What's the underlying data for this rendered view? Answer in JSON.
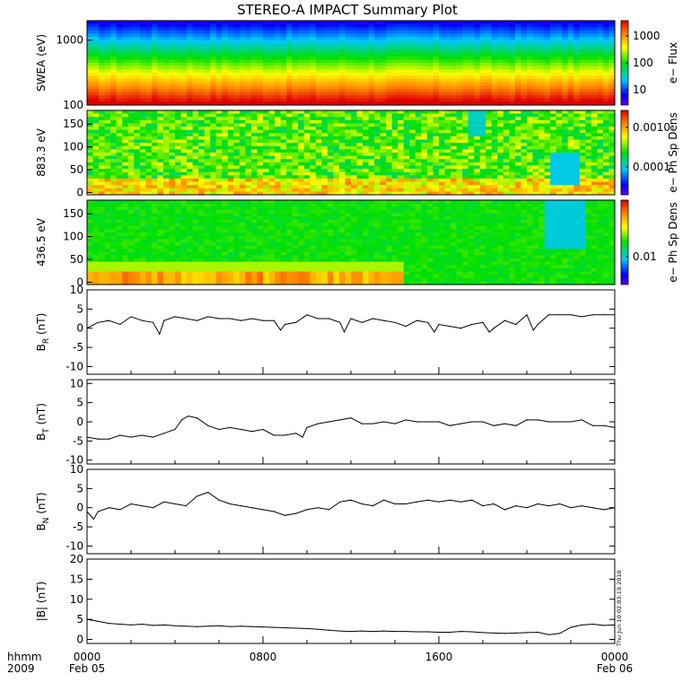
{
  "title": "STEREO-A IMPACT Summary Plot",
  "stamp": "Thu Jun 10 02:03:19 2010",
  "time_axis": {
    "corner_line1": "hhmm",
    "corner_line2": "2009",
    "ticks": [
      {
        "t": 0,
        "line1": "0000",
        "line2": "Feb 05"
      },
      {
        "t": 8,
        "line1": "0800",
        "line2": ""
      },
      {
        "t": 16,
        "line1": "1600",
        "line2": ""
      },
      {
        "t": 24,
        "line1": "0000",
        "line2": "Feb 06"
      }
    ]
  },
  "spectrograms": [
    {
      "ylabel": "SWEA (eV)",
      "scale": "log",
      "ylim": [
        100,
        2000
      ],
      "yticks": [
        {
          "v": 1000,
          "label": "1000"
        },
        {
          "v": 100,
          "label": "100"
        }
      ],
      "colorbar_label": "e− Flux",
      "colorbar_ticks": [
        {
          "f": 0.82,
          "label": "1000"
        },
        {
          "f": 0.5,
          "label": "100"
        },
        {
          "f": 0.18,
          "label": "10"
        }
      ],
      "profile": "energy"
    },
    {
      "ylabel": "883.3 eV",
      "scale": "linear",
      "ylim": [
        -5,
        180
      ],
      "yticks": [
        {
          "v": 150,
          "label": "150"
        },
        {
          "v": 100,
          "label": "100"
        },
        {
          "v": 50,
          "label": "50"
        },
        {
          "v": 0,
          "label": "0"
        }
      ],
      "colorbar_label": "e− Ph Sp Dens",
      "colorbar_ticks": [
        {
          "f": 0.8,
          "label": "0.0010"
        },
        {
          "f": 0.33,
          "label": "0.0001"
        }
      ],
      "profile": "pad_high"
    },
    {
      "ylabel": "436.5 eV",
      "scale": "linear",
      "ylim": [
        -5,
        180
      ],
      "yticks": [
        {
          "v": 150,
          "label": "150"
        },
        {
          "v": 100,
          "label": "100"
        },
        {
          "v": 50,
          "label": "50"
        },
        {
          "v": 0,
          "label": "0"
        }
      ],
      "colorbar_label": "e− Ph Sp Dens",
      "colorbar_ticks": [
        {
          "f": 0.33,
          "label": "0.01"
        }
      ],
      "profile": "pad_low"
    }
  ],
  "chart_data": [
    {
      "type": "line",
      "name": "BR",
      "ylabel_main": "B",
      "ylabel_sub": "R",
      "ylabel_unit": " (nT)",
      "ylim": [
        -12,
        10
      ],
      "yticks": [
        10,
        5,
        0,
        -5,
        -10
      ],
      "x": [
        0,
        0.5,
        1,
        1.5,
        2,
        2.5,
        3,
        3.3,
        3.5,
        4,
        4.5,
        5,
        5.5,
        6,
        6.5,
        7,
        7.5,
        8,
        8.5,
        8.8,
        9,
        9.5,
        10,
        10.5,
        11,
        11.5,
        11.7,
        12,
        12.5,
        13,
        13.5,
        14,
        14.5,
        15,
        15.5,
        15.8,
        16,
        16.5,
        17,
        17.5,
        18,
        18.3,
        18.5,
        19,
        19.5,
        20,
        20.3,
        20.5,
        21,
        21.5,
        22,
        22.5,
        23,
        23.5,
        24
      ],
      "y": [
        0,
        1.5,
        2,
        1,
        3,
        2,
        1.5,
        -1.5,
        2,
        3,
        2.5,
        2,
        3,
        2.5,
        2.5,
        2,
        2.5,
        2,
        2,
        -0.5,
        1,
        1.5,
        3.5,
        2.5,
        2.5,
        1.5,
        -1,
        2.5,
        1.5,
        2.5,
        2,
        1.5,
        0.5,
        2,
        1.5,
        -1,
        1,
        0.5,
        0,
        1,
        1.5,
        -1,
        0,
        2,
        1,
        3.5,
        -0.5,
        1,
        3.5,
        3.5,
        3.5,
        3,
        3.5,
        3.5,
        3.5
      ]
    },
    {
      "type": "line",
      "name": "BT",
      "ylabel_main": "B",
      "ylabel_sub": "T",
      "ylabel_unit": " (nT)",
      "ylim": [
        -11,
        11
      ],
      "yticks": [
        10,
        5,
        0,
        -5,
        -10
      ],
      "x": [
        0,
        0.5,
        1,
        1.5,
        2,
        2.5,
        3,
        3.5,
        4,
        4.3,
        4.6,
        5,
        5.5,
        6,
        6.5,
        7,
        7.5,
        8,
        8.5,
        9,
        9.5,
        9.8,
        10,
        10.5,
        11,
        11.5,
        12,
        12.5,
        13,
        13.5,
        14,
        14.5,
        15,
        15.5,
        16,
        16.5,
        17,
        17.5,
        18,
        18.5,
        19,
        19.5,
        20,
        20.5,
        21,
        21.5,
        22,
        22.5,
        23,
        23.5,
        24
      ],
      "y": [
        -4,
        -4.5,
        -4.5,
        -3.5,
        -4,
        -3.5,
        -4,
        -3,
        -2,
        0.5,
        1.5,
        1,
        -1,
        -2,
        -1.5,
        -2,
        -2.5,
        -2,
        -3.5,
        -3.5,
        -3,
        -4,
        -1.5,
        -0.5,
        0,
        0.5,
        1,
        -0.5,
        -0.5,
        0,
        -0.5,
        0.5,
        0,
        0,
        0,
        -1,
        -0.5,
        0,
        0,
        -1,
        -0.5,
        -1,
        0.5,
        0.5,
        0,
        0,
        0,
        0.5,
        -1,
        -1,
        -1.5
      ]
    },
    {
      "type": "line",
      "name": "BN",
      "ylabel_main": "B",
      "ylabel_sub": "N",
      "ylabel_unit": " (nT)",
      "ylim": [
        -12,
        10
      ],
      "yticks": [
        10,
        5,
        0,
        -5,
        -10
      ],
      "x": [
        0,
        0.3,
        0.5,
        1,
        1.5,
        2,
        2.5,
        3,
        3.5,
        4,
        4.5,
        5,
        5.5,
        6,
        6.5,
        7,
        7.5,
        8,
        8.5,
        9,
        9.5,
        10,
        10.5,
        11,
        11.5,
        12,
        12.5,
        13,
        13.5,
        14,
        14.5,
        15,
        15.5,
        16,
        16.5,
        17,
        17.5,
        18,
        18.5,
        19,
        19.5,
        20,
        20.5,
        21,
        21.5,
        22,
        22.5,
        23,
        23.5,
        24
      ],
      "y": [
        -1,
        -3,
        -1,
        0,
        -0.5,
        1,
        0.5,
        0,
        1.5,
        1,
        0.5,
        3,
        4,
        2,
        1,
        0.5,
        0,
        -0.5,
        -1,
        -2,
        -1.5,
        -0.5,
        0,
        -0.5,
        1.5,
        2,
        1,
        0.5,
        2,
        1,
        1,
        1.5,
        2,
        1.5,
        2,
        1.5,
        2,
        0.5,
        1,
        -0.5,
        0.5,
        0,
        1,
        0.5,
        1,
        0,
        0.5,
        0,
        -0.5,
        0
      ]
    },
    {
      "type": "line",
      "name": "|B|",
      "ylabel_main": "|B|",
      "ylabel_sub": "",
      "ylabel_unit": " (nT)",
      "ylim": [
        -1,
        20
      ],
      "yticks": [
        20,
        15,
        10,
        5,
        0
      ],
      "x": [
        0,
        0.5,
        1,
        1.5,
        2,
        2.5,
        3,
        3.5,
        4,
        4.5,
        5,
        5.5,
        6,
        6.5,
        7,
        7.5,
        8,
        8.5,
        9,
        9.5,
        10,
        10.5,
        11,
        11.5,
        12,
        12.5,
        13,
        13.5,
        14,
        14.5,
        15,
        15.5,
        16,
        16.5,
        17,
        17.5,
        18,
        18.5,
        19,
        19.5,
        20,
        20.5,
        21,
        21.5,
        22,
        22.5,
        23,
        23.5,
        24
      ],
      "y": [
        5,
        4.5,
        4,
        3.8,
        3.6,
        3.8,
        3.5,
        3.6,
        3.4,
        3.3,
        3.2,
        3.3,
        3.4,
        3.2,
        3.3,
        3.2,
        3.1,
        3,
        2.9,
        2.8,
        2.7,
        2.5,
        2.3,
        2.1,
        2,
        2.1,
        2,
        2.1,
        2,
        2,
        1.9,
        1.9,
        1.8,
        1.8,
        2,
        1.9,
        1.7,
        1.6,
        1.5,
        1.6,
        1.7,
        1.8,
        1.2,
        1.5,
        3,
        3.6,
        3.8,
        3.5,
        3.6
      ]
    }
  ]
}
